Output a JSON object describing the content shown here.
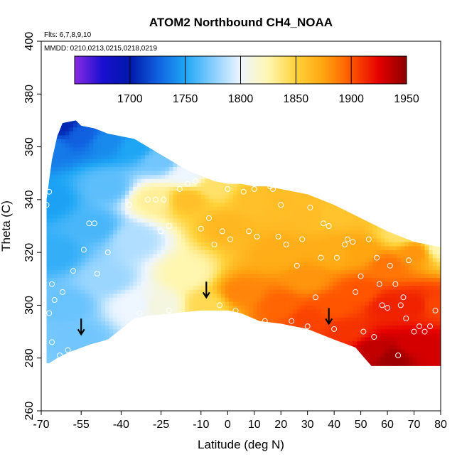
{
  "chart_data": {
    "type": "heatmap",
    "title": "ATOM2 Northbound CH4_NOAA",
    "flights_note": "Flts: 6,7,8,9,10",
    "dates_note": "MMDD: 0210,0213,0215,0218,0219",
    "xlabel": "Latitude (deg N)",
    "ylabel": "Theta (C)",
    "xlim": [
      -70,
      80
    ],
    "ylim": [
      260,
      400
    ],
    "x_ticks": [
      -70,
      -55,
      -40,
      -25,
      -10,
      0,
      10,
      20,
      30,
      40,
      50,
      60,
      70,
      80
    ],
    "y_ticks": [
      260,
      280,
      300,
      320,
      340,
      360,
      380,
      400
    ],
    "colorbar": {
      "range": [
        1650,
        1950
      ],
      "ticks": [
        1700,
        1750,
        1800,
        1850,
        1900,
        1950
      ],
      "stops": [
        {
          "value": 1650,
          "color": "#8a2be2"
        },
        {
          "value": 1675,
          "color": "#1a0fd0"
        },
        {
          "value": 1700,
          "color": "#0018a8"
        },
        {
          "value": 1725,
          "color": "#1060e0"
        },
        {
          "value": 1750,
          "color": "#1ea6f5"
        },
        {
          "value": 1775,
          "color": "#86ceff"
        },
        {
          "value": 1800,
          "color": "#eef6ff"
        },
        {
          "value": 1825,
          "color": "#fff6b0"
        },
        {
          "value": 1850,
          "color": "#ffd23a"
        },
        {
          "value": 1875,
          "color": "#ffa510"
        },
        {
          "value": 1900,
          "color": "#ff5500"
        },
        {
          "value": 1925,
          "color": "#e60000"
        },
        {
          "value": 1950,
          "color": "#8b0000"
        }
      ]
    },
    "field_domain": {
      "upper": [
        [
          -68,
          340
        ],
        [
          -66,
          355
        ],
        [
          -64,
          364
        ],
        [
          -62,
          369
        ],
        [
          -57,
          370
        ],
        [
          -55,
          368
        ],
        [
          -50,
          367
        ],
        [
          -45,
          365
        ],
        [
          -40,
          364
        ],
        [
          -35,
          363
        ],
        [
          -30,
          360
        ],
        [
          -25,
          357
        ],
        [
          -20,
          354
        ],
        [
          -15,
          351
        ],
        [
          -10,
          349
        ],
        [
          -5,
          347
        ],
        [
          0,
          346
        ],
        [
          5,
          346
        ],
        [
          10,
          345
        ],
        [
          15,
          345
        ],
        [
          20,
          344
        ],
        [
          30,
          342
        ],
        [
          40,
          338
        ],
        [
          50,
          333
        ],
        [
          60,
          328
        ],
        [
          70,
          324
        ],
        [
          80,
          322
        ]
      ],
      "lower": [
        [
          80,
          277
        ],
        [
          70,
          277
        ],
        [
          60,
          277
        ],
        [
          54,
          277
        ],
        [
          48,
          284
        ],
        [
          40,
          287
        ],
        [
          30,
          291
        ],
        [
          20,
          293
        ],
        [
          12,
          294
        ],
        [
          5,
          297
        ],
        [
          0,
          298
        ],
        [
          -10,
          298
        ],
        [
          -20,
          297
        ],
        [
          -30,
          296
        ],
        [
          -35,
          295
        ],
        [
          -45,
          287
        ],
        [
          -52,
          285
        ],
        [
          -60,
          282
        ],
        [
          -64,
          280
        ],
        [
          -67,
          278
        ],
        [
          -68,
          278
        ]
      ]
    },
    "field_anchors": [
      {
        "lat": -67,
        "theta": 360,
        "value": 1735
      },
      {
        "lat": -62,
        "theta": 368,
        "value": 1705
      },
      {
        "lat": -55,
        "theta": 365,
        "value": 1725
      },
      {
        "lat": -45,
        "theta": 362,
        "value": 1740
      },
      {
        "lat": -35,
        "theta": 360,
        "value": 1750
      },
      {
        "lat": -25,
        "theta": 355,
        "value": 1770
      },
      {
        "lat": -15,
        "theta": 350,
        "value": 1800
      },
      {
        "lat": -67,
        "theta": 340,
        "value": 1748
      },
      {
        "lat": -65,
        "theta": 320,
        "value": 1755
      },
      {
        "lat": -60,
        "theta": 300,
        "value": 1768
      },
      {
        "lat": -55,
        "theta": 288,
        "value": 1770
      },
      {
        "lat": -50,
        "theta": 330,
        "value": 1760
      },
      {
        "lat": -45,
        "theta": 345,
        "value": 1765
      },
      {
        "lat": -45,
        "theta": 310,
        "value": 1780
      },
      {
        "lat": -35,
        "theta": 325,
        "value": 1785
      },
      {
        "lat": -35,
        "theta": 300,
        "value": 1800
      },
      {
        "lat": -28,
        "theta": 340,
        "value": 1830
      },
      {
        "lat": -25,
        "theta": 300,
        "value": 1810
      },
      {
        "lat": -15,
        "theta": 340,
        "value": 1860
      },
      {
        "lat": -15,
        "theta": 312,
        "value": 1825
      },
      {
        "lat": -8,
        "theta": 300,
        "value": 1845
      },
      {
        "lat": -5,
        "theta": 345,
        "value": 1840
      },
      {
        "lat": 0,
        "theta": 330,
        "value": 1865
      },
      {
        "lat": 5,
        "theta": 305,
        "value": 1885
      },
      {
        "lat": 10,
        "theta": 340,
        "value": 1860
      },
      {
        "lat": 20,
        "theta": 340,
        "value": 1862
      },
      {
        "lat": 20,
        "theta": 320,
        "value": 1870
      },
      {
        "lat": 20,
        "theta": 300,
        "value": 1895
      },
      {
        "lat": 30,
        "theta": 335,
        "value": 1862
      },
      {
        "lat": 30,
        "theta": 310,
        "value": 1880
      },
      {
        "lat": 30,
        "theta": 295,
        "value": 1905
      },
      {
        "lat": 40,
        "theta": 335,
        "value": 1858
      },
      {
        "lat": 40,
        "theta": 320,
        "value": 1870
      },
      {
        "lat": 40,
        "theta": 300,
        "value": 1900
      },
      {
        "lat": 45,
        "theta": 290,
        "value": 1910
      },
      {
        "lat": 50,
        "theta": 320,
        "value": 1875
      },
      {
        "lat": 50,
        "theta": 305,
        "value": 1900
      },
      {
        "lat": 55,
        "theta": 283,
        "value": 1935
      },
      {
        "lat": 60,
        "theta": 315,
        "value": 1890
      },
      {
        "lat": 60,
        "theta": 300,
        "value": 1915
      },
      {
        "lat": 62,
        "theta": 280,
        "value": 1945
      },
      {
        "lat": 70,
        "theta": 320,
        "value": 1880
      },
      {
        "lat": 70,
        "theta": 300,
        "value": 1915
      },
      {
        "lat": 70,
        "theta": 285,
        "value": 1930
      },
      {
        "lat": 78,
        "theta": 300,
        "value": 1905
      },
      {
        "lat": 78,
        "theta": 282,
        "value": 1930
      },
      {
        "lat": 65,
        "theta": 327,
        "value": 1840
      },
      {
        "lat": 80,
        "theta": 322,
        "value": 1825
      }
    ],
    "observations": [
      [
        -68,
        338
      ],
      [
        -67,
        343
      ],
      [
        -66,
        308
      ],
      [
        -65,
        302
      ],
      [
        -67,
        297
      ],
      [
        -66,
        286
      ],
      [
        -63,
        281
      ],
      [
        -60,
        283
      ],
      [
        -62,
        305
      ],
      [
        -58,
        313
      ],
      [
        -54,
        321
      ],
      [
        -52,
        331
      ],
      [
        -50,
        331
      ],
      [
        -49,
        312
      ],
      [
        -45,
        320
      ],
      [
        -45,
        286
      ],
      [
        -37,
        338
      ],
      [
        -33,
        297
      ],
      [
        -30,
        340
      ],
      [
        -27,
        340
      ],
      [
        -24,
        340
      ],
      [
        -25,
        328
      ],
      [
        -22,
        330
      ],
      [
        -22,
        298
      ],
      [
        -18,
        344
      ],
      [
        -15,
        346
      ],
      [
        -12,
        347
      ],
      [
        -10,
        329
      ],
      [
        -7,
        333
      ],
      [
        -5,
        323
      ],
      [
        -3,
        300
      ],
      [
        -2,
        328
      ],
      [
        0,
        344
      ],
      [
        1,
        325
      ],
      [
        3,
        298
      ],
      [
        6,
        343
      ],
      [
        8,
        328
      ],
      [
        10,
        344
      ],
      [
        11,
        326
      ],
      [
        14,
        294
      ],
      [
        16,
        345
      ],
      [
        17,
        344
      ],
      [
        19,
        326
      ],
      [
        20,
        338
      ],
      [
        22,
        323
      ],
      [
        24,
        294
      ],
      [
        26,
        315
      ],
      [
        28,
        325
      ],
      [
        30,
        292
      ],
      [
        31,
        337
      ],
      [
        33,
        303
      ],
      [
        35,
        318
      ],
      [
        36,
        331
      ],
      [
        38,
        330
      ],
      [
        40,
        291
      ],
      [
        41,
        318
      ],
      [
        44,
        323
      ],
      [
        45,
        325
      ],
      [
        47,
        324
      ],
      [
        48,
        305
      ],
      [
        50,
        311
      ],
      [
        51,
        290
      ],
      [
        53,
        325
      ],
      [
        55,
        288
      ],
      [
        56,
        318
      ],
      [
        57,
        308
      ],
      [
        58,
        300
      ],
      [
        60,
        299
      ],
      [
        61,
        315
      ],
      [
        63,
        308
      ],
      [
        64,
        281
      ],
      [
        65,
        300
      ],
      [
        66,
        303
      ],
      [
        67,
        295
      ],
      [
        68,
        317
      ],
      [
        70,
        290
      ],
      [
        72,
        292
      ],
      [
        74,
        290
      ],
      [
        76,
        292
      ],
      [
        78,
        298
      ]
    ],
    "arrows": [
      {
        "lat": -55,
        "theta": 289
      },
      {
        "lat": -8,
        "theta": 303
      },
      {
        "lat": 38,
        "theta": 293
      }
    ]
  }
}
